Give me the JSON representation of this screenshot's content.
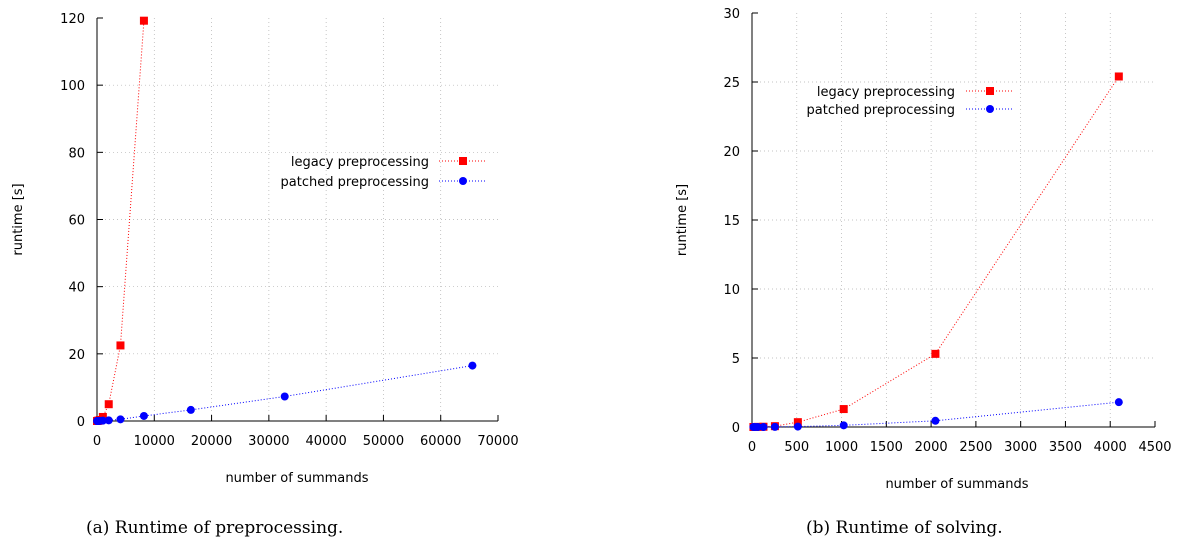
{
  "chart_data": [
    {
      "type": "line",
      "caption": "(a) Runtime of preprocessing.",
      "xlabel": "number of summands",
      "ylabel": "runtime [s]",
      "xlim": [
        0,
        70000
      ],
      "ylim": [
        0,
        120
      ],
      "xticks": [
        0,
        10000,
        20000,
        30000,
        40000,
        50000,
        60000,
        70000
      ],
      "yticks": [
        0,
        20,
        40,
        60,
        80,
        100,
        120
      ],
      "grid": true,
      "legend": "right",
      "series": [
        {
          "name": "legacy preprocessing",
          "color": "#ff0000",
          "marker": "square",
          "x": [
            16,
            32,
            64,
            128,
            256,
            512,
            1024,
            2048,
            4096,
            8192
          ],
          "y": [
            0.0,
            0.0,
            0.0,
            0.05,
            0.1,
            0.3,
            1.2,
            5.0,
            22.5,
            119.2
          ]
        },
        {
          "name": "patched preprocessing",
          "color": "#0000ff",
          "marker": "circle",
          "x": [
            16,
            32,
            64,
            128,
            256,
            512,
            1024,
            2048,
            4096,
            8192,
            16384,
            32768,
            65536
          ],
          "y": [
            0.0,
            0.0,
            0.0,
            0.0,
            0.0,
            0.05,
            0.1,
            0.2,
            0.5,
            1.5,
            3.3,
            7.3,
            16.5
          ]
        }
      ]
    },
    {
      "type": "line",
      "caption": "(b) Runtime of solving.",
      "xlabel": "number of summands",
      "ylabel": "runtime [s]",
      "xlim": [
        0,
        4500
      ],
      "ylim": [
        0,
        30
      ],
      "xticks": [
        0,
        500,
        1000,
        1500,
        2000,
        2500,
        3000,
        3500,
        4000,
        4500
      ],
      "yticks": [
        0,
        5,
        10,
        15,
        20,
        25,
        30
      ],
      "grid": true,
      "legend": "top-left",
      "series": [
        {
          "name": "legacy preprocessing",
          "color": "#ff0000",
          "marker": "square",
          "x": [
            16,
            32,
            64,
            128,
            256,
            512,
            1024,
            2048,
            4096
          ],
          "y": [
            0.0,
            0.0,
            0.01,
            0.02,
            0.06,
            0.35,
            1.3,
            5.3,
            25.4
          ]
        },
        {
          "name": "patched preprocessing",
          "color": "#0000ff",
          "marker": "circle",
          "x": [
            16,
            32,
            64,
            128,
            256,
            512,
            1024,
            2048,
            4096
          ],
          "y": [
            0.0,
            0.0,
            0.0,
            0.0,
            0.01,
            0.03,
            0.12,
            0.45,
            1.8
          ]
        }
      ]
    }
  ]
}
